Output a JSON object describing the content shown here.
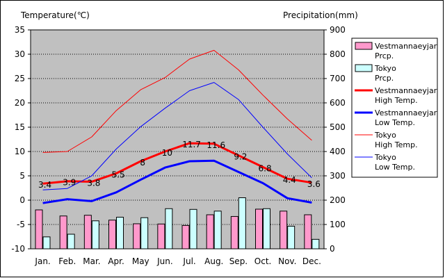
{
  "chart_data": {
    "type": "bar+line",
    "left_axis_title": "Temperature(℃)",
    "right_axis_title": "Precipitation(mm)",
    "categories": [
      "Jan.",
      "Feb.",
      "Mar.",
      "Apr.",
      "May",
      "Jun.",
      "Jul.",
      "Aug.",
      "Sep.",
      "Oct.",
      "Nov.",
      "Dec."
    ],
    "ylim_left": [
      -10,
      35
    ],
    "yticks_left": [
      "35",
      "30",
      "25",
      "20",
      "15",
      "10",
      "5",
      "0",
      "-5",
      "-10"
    ],
    "ylim_right": [
      0,
      900
    ],
    "yticks_right": [
      "900",
      "800",
      "700",
      "600",
      "500",
      "400",
      "300",
      "200",
      "100",
      "0"
    ],
    "grid": true,
    "plot_background": "#c0c0c0",
    "bar_series": [
      {
        "name": "Vestmannaeyjar Prcp.",
        "color": "#ff99cc",
        "values": [
          160,
          135,
          138,
          118,
          103,
          102,
          96,
          140,
          133,
          163,
          155,
          140
        ]
      },
      {
        "name": "Tokyo Prcp.",
        "color": "#ccffff",
        "values": [
          49,
          60,
          115,
          130,
          128,
          165,
          162,
          155,
          210,
          165,
          93,
          39
        ]
      }
    ],
    "line_series": [
      {
        "name": "Vestmannaeyjar High Temp.",
        "color": "#ff0000",
        "width": 3,
        "values": [
          3.4,
          3.9,
          3.8,
          5.5,
          8,
          10,
          11.7,
          11.6,
          9.2,
          6.8,
          4.4,
          3.6
        ]
      },
      {
        "name": "Vestmannaeyjar Low Temp.",
        "color": "#0000ff",
        "width": 3,
        "values": [
          -0.6,
          0.2,
          -0.2,
          1.6,
          4.2,
          6.7,
          8,
          8.1,
          5.8,
          3.5,
          0.4,
          -0.5
        ]
      },
      {
        "name": "Tokyo High Temp.",
        "color": "#ff0000",
        "width": 1,
        "values": [
          9.8,
          10,
          13,
          18.4,
          22.7,
          25.2,
          29,
          30.8,
          26.8,
          21.6,
          16.7,
          12.3
        ]
      },
      {
        "name": "Tokyo Low Temp.",
        "color": "#0000ff",
        "width": 1,
        "values": [
          2.1,
          2.4,
          5,
          10.5,
          15.1,
          18.9,
          22.5,
          24.2,
          20.7,
          15,
          9.5,
          4.6
        ]
      }
    ],
    "data_labels": [
      "3.4",
      "3.9",
      "3.8",
      "5.5",
      "8",
      "10",
      "11.7",
      "11.6",
      "9.2",
      "6.8",
      "4.4",
      "3.6"
    ],
    "legend_position": "right"
  }
}
